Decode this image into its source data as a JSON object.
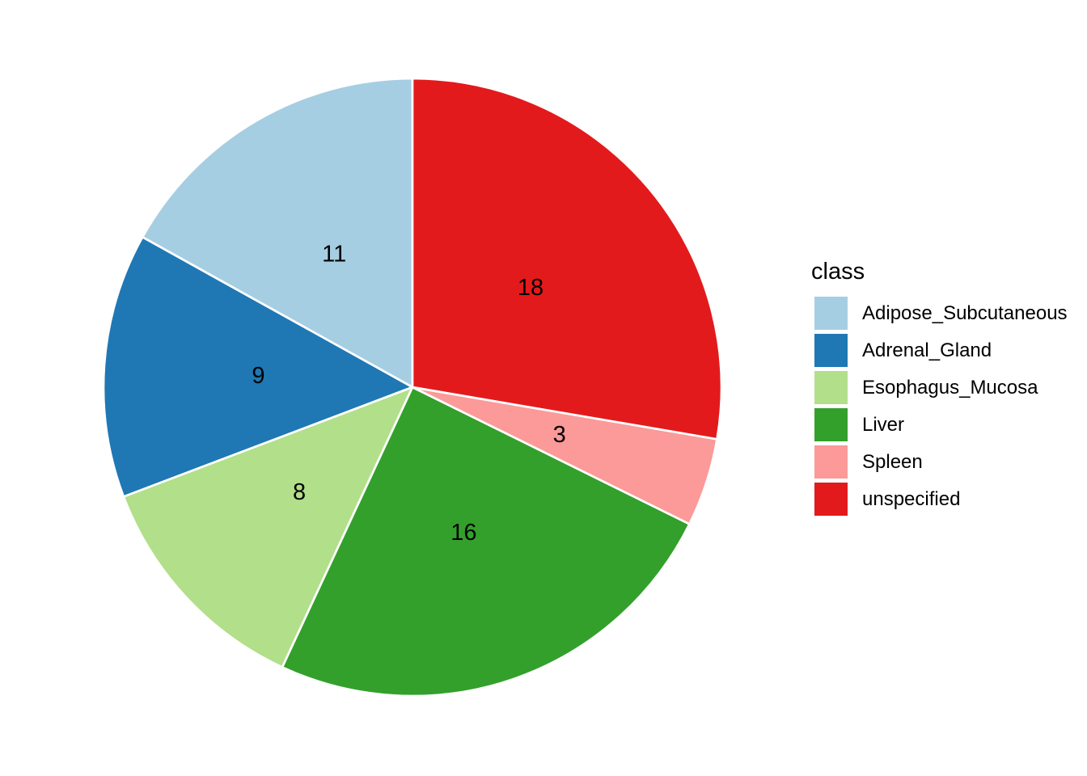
{
  "chart_data": {
    "type": "pie",
    "title": "",
    "legend_title": "class",
    "legend_position": "right",
    "categories": [
      "Adipose_Subcutaneous",
      "Adrenal_Gland",
      "Esophagus_Mucosa",
      "Liver",
      "Spleen",
      "unspecified"
    ],
    "values": [
      11,
      9,
      8,
      16,
      3,
      18
    ],
    "slice_labels": [
      "11",
      "9",
      "8",
      "16",
      "3",
      "18"
    ],
    "colors": [
      "#A6CEE3",
      "#1F78B4",
      "#B2DF8A",
      "#33A02C",
      "#FB9A99",
      "#E31A1C"
    ],
    "direction": "counterclockwise",
    "start_angle_deg": 0,
    "label_radius_fraction": 0.5,
    "slice_border_color": "#FFFFFF",
    "text_color": "#000000",
    "background_color": "#FFFFFF"
  }
}
